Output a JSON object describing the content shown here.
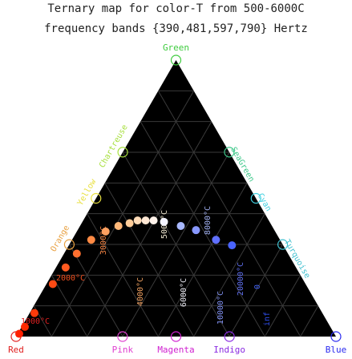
{
  "chart_data": {
    "type": "ternary-scatter",
    "title_line1": "Ternary map for color-T from 500-6000C",
    "title_line2": "frequency bands {390,481,597,790} Hertz",
    "corners": {
      "top": {
        "label": "Green",
        "color": "#3ecb3e"
      },
      "left": {
        "label": "Red",
        "color": "#e02020"
      },
      "right": {
        "label": "Blue",
        "color": "#2a2af0"
      }
    },
    "bottom_edge_labels": [
      {
        "label": "Pink",
        "color": "#e040d0",
        "t": 0.333
      },
      {
        "label": "Magenta",
        "color": "#d020d0",
        "t": 0.5
      },
      {
        "label": "Indigo",
        "color": "#8a2be2",
        "t": 0.667
      }
    ],
    "left_edge_labels": [
      {
        "label": "Chartreuse",
        "color": "#a8e040",
        "t": 0.667
      },
      {
        "label": "Yellow",
        "color": "#e8e040",
        "t": 0.5
      },
      {
        "label": "Orange",
        "color": "#e8a040",
        "t": 0.333
      }
    ],
    "right_edge_labels": [
      {
        "label": "SeaGreen",
        "color": "#3ec88a",
        "t": 0.667
      },
      {
        "label": "Cyan",
        "color": "#40d0e0",
        "t": 0.5
      },
      {
        "label": "Turquoise",
        "color": "#40c0d0",
        "t": 0.333
      }
    ],
    "temperature_labels": [
      {
        "label": "1000°C",
        "color": "#e02020"
      },
      {
        "label": "2000°C",
        "color": "#f05020"
      },
      {
        "label": "3000°C",
        "color": "#f08040"
      },
      {
        "label": "4000°C",
        "color": "#f0a060"
      },
      {
        "label": "5000°C",
        "color": "#f0e8d0"
      },
      {
        "label": "6000°C",
        "color": "#e8e8f0"
      },
      {
        "label": "8000°C",
        "color": "#a0b0f0"
      },
      {
        "label": "10000°C",
        "color": "#8090f0"
      },
      {
        "label": "20000°C",
        "color": "#6070f0"
      },
      {
        "label": "0",
        "color": "#4060f0"
      },
      {
        "label": "inf",
        "color": "#3050f0"
      }
    ],
    "points": [
      {
        "temp_c": 500,
        "red": 0.985,
        "green": 0.01,
        "blue": 0.005,
        "color": "#ff2000"
      },
      {
        "temp_c": 700,
        "red": 0.955,
        "green": 0.035,
        "blue": 0.01,
        "color": "#ff2a00"
      },
      {
        "temp_c": 1000,
        "red": 0.9,
        "green": 0.085,
        "blue": 0.015,
        "color": "#ff3a0a"
      },
      {
        "temp_c": 1500,
        "red": 0.79,
        "green": 0.19,
        "blue": 0.02,
        "color": "#ff4a14"
      },
      {
        "temp_c": 2000,
        "red": 0.72,
        "green": 0.25,
        "blue": 0.03,
        "color": "#ff5a20"
      },
      {
        "temp_c": 2500,
        "red": 0.66,
        "green": 0.3,
        "blue": 0.04,
        "color": "#ff7030"
      },
      {
        "temp_c": 3000,
        "red": 0.59,
        "green": 0.35,
        "blue": 0.06,
        "color": "#ff8a44"
      },
      {
        "temp_c": 3500,
        "red": 0.53,
        "green": 0.38,
        "blue": 0.09,
        "color": "#ffa060"
      },
      {
        "temp_c": 4000,
        "red": 0.48,
        "green": 0.4,
        "blue": 0.12,
        "color": "#ffb878"
      },
      {
        "temp_c": 4500,
        "red": 0.44,
        "green": 0.41,
        "blue": 0.15,
        "color": "#ffcc98"
      },
      {
        "temp_c": 5000,
        "red": 0.41,
        "green": 0.42,
        "blue": 0.17,
        "color": "#ffdcb8"
      },
      {
        "temp_c": 5500,
        "red": 0.385,
        "green": 0.42,
        "blue": 0.195,
        "color": "#ffe8d4"
      },
      {
        "temp_c": 6000,
        "red": 0.36,
        "green": 0.42,
        "blue": 0.22,
        "color": "#fff2ea"
      },
      {
        "temp_c": 7000,
        "red": 0.33,
        "green": 0.415,
        "blue": 0.255,
        "color": "#f4f4ff"
      },
      {
        "temp_c": 8000,
        "red": 0.285,
        "green": 0.4,
        "blue": 0.315,
        "color": "#a8b8ff"
      },
      {
        "temp_c": 10000,
        "red": 0.245,
        "green": 0.385,
        "blue": 0.37,
        "color": "#8898ff"
      },
      {
        "temp_c": 20000,
        "red": 0.2,
        "green": 0.35,
        "blue": 0.45,
        "color": "#6070ff"
      },
      {
        "temp_c": 40000,
        "red": 0.16,
        "green": 0.33,
        "blue": 0.51,
        "color": "#4a64ff"
      }
    ],
    "grid": true,
    "background": "#000000"
  }
}
